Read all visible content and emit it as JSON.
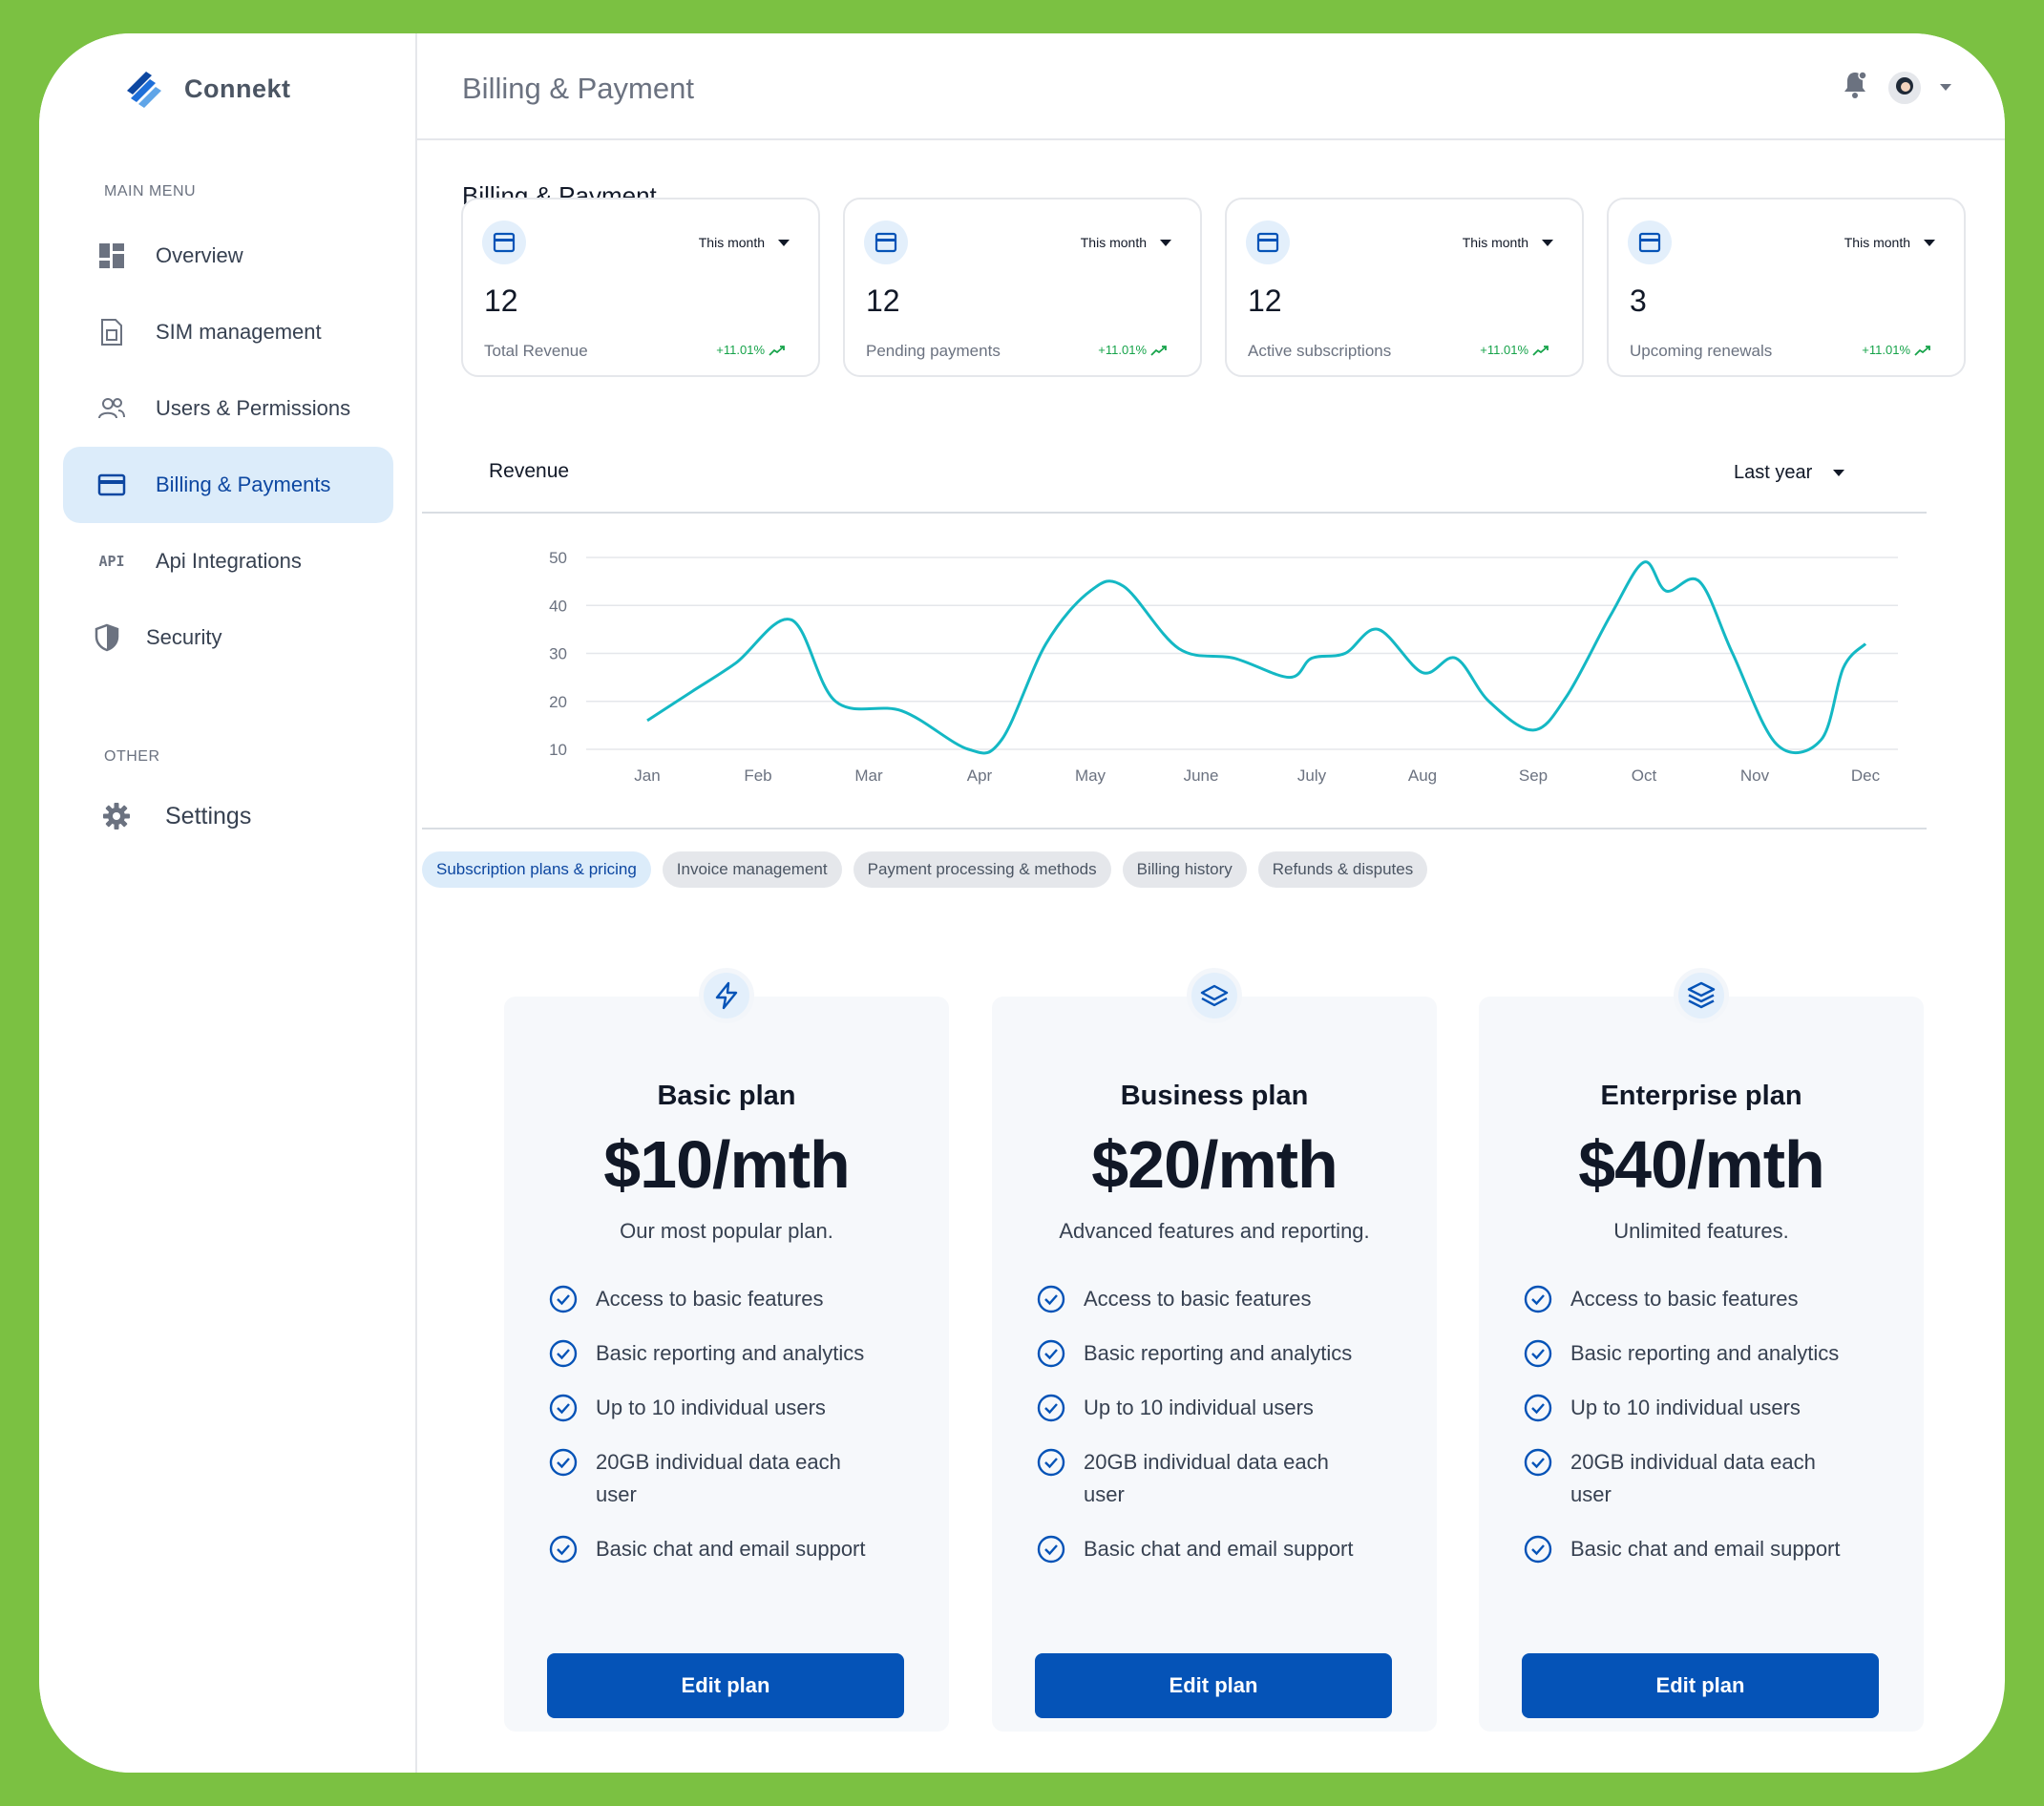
{
  "app": {
    "name": "Connekt"
  },
  "sidebar": {
    "main_caption": "MAIN MENU",
    "other_caption": "OTHER",
    "items": [
      {
        "label": "Overview",
        "icon": "dashboard-icon"
      },
      {
        "label": "SIM management",
        "icon": "sim-card-icon"
      },
      {
        "label": "Users & Permissions",
        "icon": "users-icon"
      },
      {
        "label": "Billing & Payments",
        "icon": "credit-card-icon",
        "active": true
      },
      {
        "label": "Api Integrations",
        "icon": "api-icon",
        "icon_text": "API"
      },
      {
        "label": "Security",
        "icon": "shield-icon"
      }
    ],
    "other_items": [
      {
        "label": "Settings",
        "icon": "gear-icon"
      }
    ]
  },
  "header": {
    "title": "Billing & Payment"
  },
  "main": {
    "title": "Billing & Payment",
    "stats": [
      {
        "value": "12",
        "label": "Total Revenue",
        "period": "This month",
        "change": "+11.01%"
      },
      {
        "value": "12",
        "label": "Pending payments",
        "period": "This month",
        "change": "+11.01%"
      },
      {
        "value": "12",
        "label": "Active subscriptions",
        "period": "This month",
        "change": "+11.01%"
      },
      {
        "value": "3",
        "label": "Upcoming renewals",
        "period": "This month",
        "change": "+11.01%"
      }
    ],
    "chart": {
      "title": "Revenue",
      "period": "Last year"
    },
    "tabs": [
      {
        "label": "Subscription plans & pricing",
        "active": true
      },
      {
        "label": "Invoice management"
      },
      {
        "label": "Payment processing & methods"
      },
      {
        "label": "Billing history"
      },
      {
        "label": "Refunds & disputes"
      }
    ],
    "plans": [
      {
        "name": "Basic plan",
        "price": "$10/mth",
        "description": "Our most popular plan.",
        "icon": "lightning-icon",
        "features": [
          "Access to basic features",
          "Basic reporting and analytics",
          "Up to 10 individual users",
          "20GB individual data each user",
          "Basic chat and email support"
        ],
        "button": "Edit plan"
      },
      {
        "name": "Business plan",
        "price": "$20/mth",
        "description": "Advanced features and reporting.",
        "icon": "layers-icon",
        "features": [
          "Access to basic features",
          "Basic reporting and analytics",
          "Up to 10 individual users",
          "20GB individual data each user",
          "Basic chat and email support"
        ],
        "button": "Edit plan"
      },
      {
        "name": "Enterprise plan",
        "price": "$40/mth",
        "description": "Unlimited features.",
        "icon": "layers-stack-icon",
        "features": [
          "Access to basic features",
          "Basic reporting and analytics",
          "Up to 10 individual users",
          "20GB individual data each user",
          "Basic chat and email support"
        ],
        "button": "Edit plan"
      }
    ]
  },
  "colors": {
    "accent": "#0553b7",
    "line": "#14b8c4",
    "frame": "#7bc142",
    "active_bg": "#dcecfa",
    "positive": "#16a34a"
  },
  "chart_data": {
    "type": "line",
    "categories": [
      "Jan",
      "Feb",
      "Mar",
      "Apr",
      "May",
      "June",
      "July",
      "Aug",
      "Sep",
      "Oct",
      "Nov",
      "Dec"
    ],
    "x": [
      0,
      0.4,
      0.8,
      1.3,
      1.7,
      2.3,
      2.9,
      3.2,
      3.6,
      4.0,
      4.3,
      4.8,
      5.3,
      5.8,
      6.0,
      6.3,
      6.6,
      7.0,
      7.3,
      7.6,
      8.0,
      8.3,
      8.7,
      9.0,
      9.2,
      9.5,
      9.8,
      10.2,
      10.6,
      10.8,
      11.0
    ],
    "series": [
      {
        "values": [
          16,
          22,
          28,
          37,
          20,
          18,
          10,
          12,
          32,
          43,
          44,
          31,
          29,
          25,
          29,
          30,
          35,
          26,
          29,
          20,
          14,
          21,
          38,
          49,
          43,
          45,
          30,
          11,
          12,
          27,
          32
        ]
      }
    ],
    "ylim": [
      10,
      50
    ],
    "yticks": [
      10,
      20,
      30,
      40,
      50
    ],
    "grid": true,
    "legend": "none"
  }
}
